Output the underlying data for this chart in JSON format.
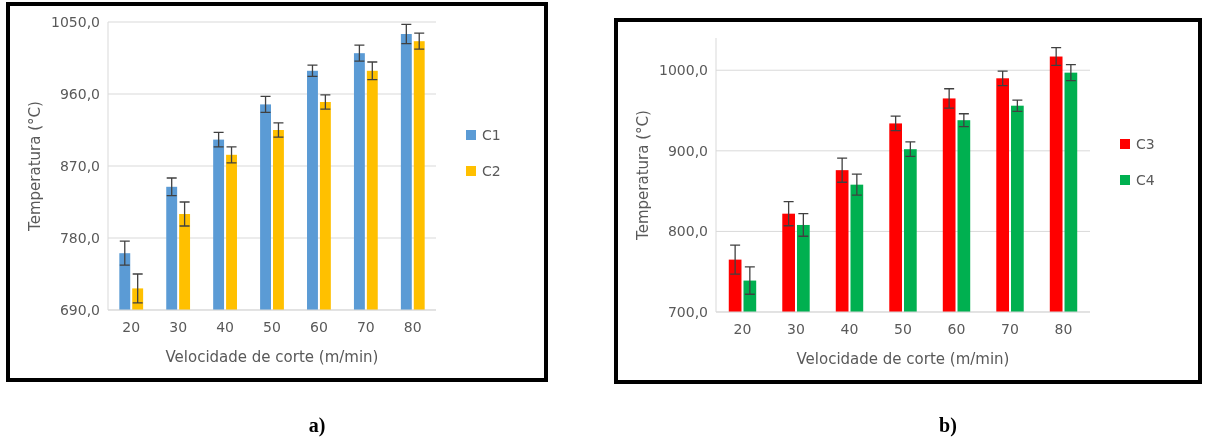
{
  "chart_data": [
    {
      "type": "bar",
      "xlabel": "Velocidade de corte (m/min)",
      "ylabel": "Temperatura (°C)",
      "categories": [
        "20",
        "30",
        "40",
        "50",
        "60",
        "70",
        "80"
      ],
      "series": [
        {
          "name": "C1",
          "color": "#5b9bd5",
          "values": [
            761,
            844,
            903,
            947,
            989,
            1011,
            1035
          ],
          "errors": [
            15,
            11,
            9,
            10,
            7,
            10,
            12
          ]
        },
        {
          "name": "C2",
          "color": "#ffc000",
          "values": [
            717,
            810,
            884,
            915,
            950,
            989,
            1026
          ],
          "errors": [
            18,
            15,
            10,
            9,
            9,
            11,
            10
          ]
        }
      ],
      "ylim": [
        690,
        1050
      ],
      "yticks": [
        {
          "value": 690,
          "label": "690,0"
        },
        {
          "value": 780,
          "label": "780,0"
        },
        {
          "value": 870,
          "label": "870,0"
        },
        {
          "value": 960,
          "label": "960,0"
        },
        {
          "value": 1050,
          "label": "1050,0"
        }
      ],
      "grid": "y",
      "legend": "right",
      "annotations": [
        "a)"
      ]
    },
    {
      "type": "bar",
      "xlabel": "Velocidade de corte (m/min)",
      "ylabel": "Temperatura (°C)",
      "categories": [
        "20",
        "30",
        "40",
        "50",
        "60",
        "70",
        "80"
      ],
      "series": [
        {
          "name": "C3",
          "color": "#ff0000",
          "values": [
            765,
            822,
            876,
            934,
            965,
            990,
            1017
          ],
          "errors": [
            18,
            15,
            15,
            9,
            12,
            9,
            11
          ]
        },
        {
          "name": "C4",
          "color": "#00b050",
          "values": [
            739,
            808,
            858,
            902,
            938,
            956,
            997
          ],
          "errors": [
            17,
            14,
            13,
            9,
            8,
            7,
            10
          ]
        }
      ],
      "ylim": [
        700,
        1040
      ],
      "yticks": [
        {
          "value": 700,
          "label": "700,0"
        },
        {
          "value": 800,
          "label": "800,0"
        },
        {
          "value": 900,
          "label": "900,0"
        },
        {
          "value": 1000,
          "label": "1000,0"
        }
      ],
      "grid": "y",
      "legend": "right",
      "annotations": [
        "b)"
      ]
    }
  ]
}
